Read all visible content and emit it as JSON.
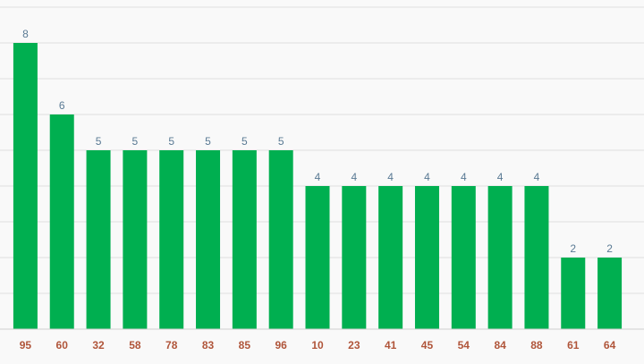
{
  "chart_data": {
    "type": "bar",
    "categories": [
      "95",
      "60",
      "32",
      "58",
      "78",
      "83",
      "85",
      "96",
      "10",
      "23",
      "41",
      "45",
      "54",
      "84",
      "88",
      "61",
      "64"
    ],
    "values": [
      8,
      6,
      5,
      5,
      5,
      5,
      5,
      5,
      4,
      4,
      4,
      4,
      4,
      4,
      4,
      2,
      2
    ],
    "title": "",
    "xlabel": "",
    "ylabel": "",
    "ylim": [
      0,
      9
    ],
    "grid": true,
    "legend": "none",
    "colors": {
      "bar": "#00af50",
      "value_label": "#5a7a94",
      "category_label": "#b0553a",
      "grid": "#dedede"
    }
  }
}
